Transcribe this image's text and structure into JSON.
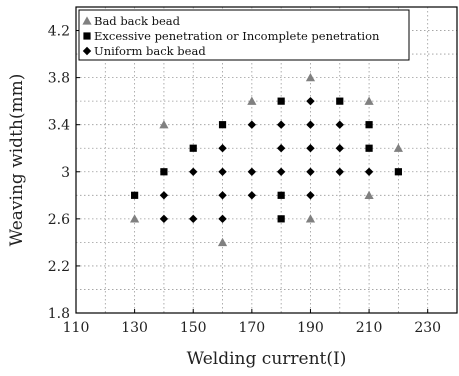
{
  "chart_data": {
    "type": "scatter",
    "title": "",
    "xlabel": "Welding current(I)",
    "ylabel": "Weaving width(mm)",
    "xlim": [
      110,
      240
    ],
    "ylim": [
      1.8,
      4.4
    ],
    "xticks": [
      "110",
      "130",
      "150",
      "170",
      "190",
      "210",
      "230"
    ],
    "yticks": [
      "1.8",
      "2.2",
      "2.6",
      "3",
      "3.4",
      "3.8",
      "4.2"
    ],
    "grid": true,
    "legend_position": "top-left",
    "series": [
      {
        "name": "Bad back bead",
        "marker": "triangle",
        "color": "#808080",
        "points": [
          {
            "x": 130,
            "y": 2.6
          },
          {
            "x": 140,
            "y": 3.4
          },
          {
            "x": 160,
            "y": 2.4
          },
          {
            "x": 170,
            "y": 3.6
          },
          {
            "x": 190,
            "y": 3.8
          },
          {
            "x": 190,
            "y": 2.6
          },
          {
            "x": 210,
            "y": 3.6
          },
          {
            "x": 210,
            "y": 2.8
          },
          {
            "x": 220,
            "y": 3.2
          }
        ]
      },
      {
        "name": "Excessive penetration or Incomplete penetration",
        "marker": "square",
        "color": "#000000",
        "points": [
          {
            "x": 130,
            "y": 2.8
          },
          {
            "x": 140,
            "y": 3.0
          },
          {
            "x": 150,
            "y": 3.2
          },
          {
            "x": 160,
            "y": 3.4
          },
          {
            "x": 180,
            "y": 3.6
          },
          {
            "x": 180,
            "y": 2.8
          },
          {
            "x": 180,
            "y": 2.6
          },
          {
            "x": 200,
            "y": 3.6
          },
          {
            "x": 210,
            "y": 3.4
          },
          {
            "x": 210,
            "y": 3.2
          },
          {
            "x": 220,
            "y": 3.0
          }
        ]
      },
      {
        "name": "Uniform back bead",
        "marker": "diamond",
        "color": "#000000",
        "points": [
          {
            "x": 140,
            "y": 2.8
          },
          {
            "x": 140,
            "y": 2.6
          },
          {
            "x": 150,
            "y": 3.0
          },
          {
            "x": 150,
            "y": 2.6
          },
          {
            "x": 160,
            "y": 3.2
          },
          {
            "x": 160,
            "y": 3.0
          },
          {
            "x": 160,
            "y": 2.8
          },
          {
            "x": 160,
            "y": 2.6
          },
          {
            "x": 170,
            "y": 3.4
          },
          {
            "x": 170,
            "y": 3.0
          },
          {
            "x": 170,
            "y": 2.8
          },
          {
            "x": 180,
            "y": 3.4
          },
          {
            "x": 180,
            "y": 3.2
          },
          {
            "x": 180,
            "y": 3.0
          },
          {
            "x": 190,
            "y": 3.6
          },
          {
            "x": 190,
            "y": 3.4
          },
          {
            "x": 190,
            "y": 3.2
          },
          {
            "x": 190,
            "y": 3.0
          },
          {
            "x": 190,
            "y": 2.8
          },
          {
            "x": 200,
            "y": 3.4
          },
          {
            "x": 200,
            "y": 3.2
          },
          {
            "x": 200,
            "y": 3.0
          },
          {
            "x": 210,
            "y": 3.0
          }
        ]
      }
    ]
  }
}
